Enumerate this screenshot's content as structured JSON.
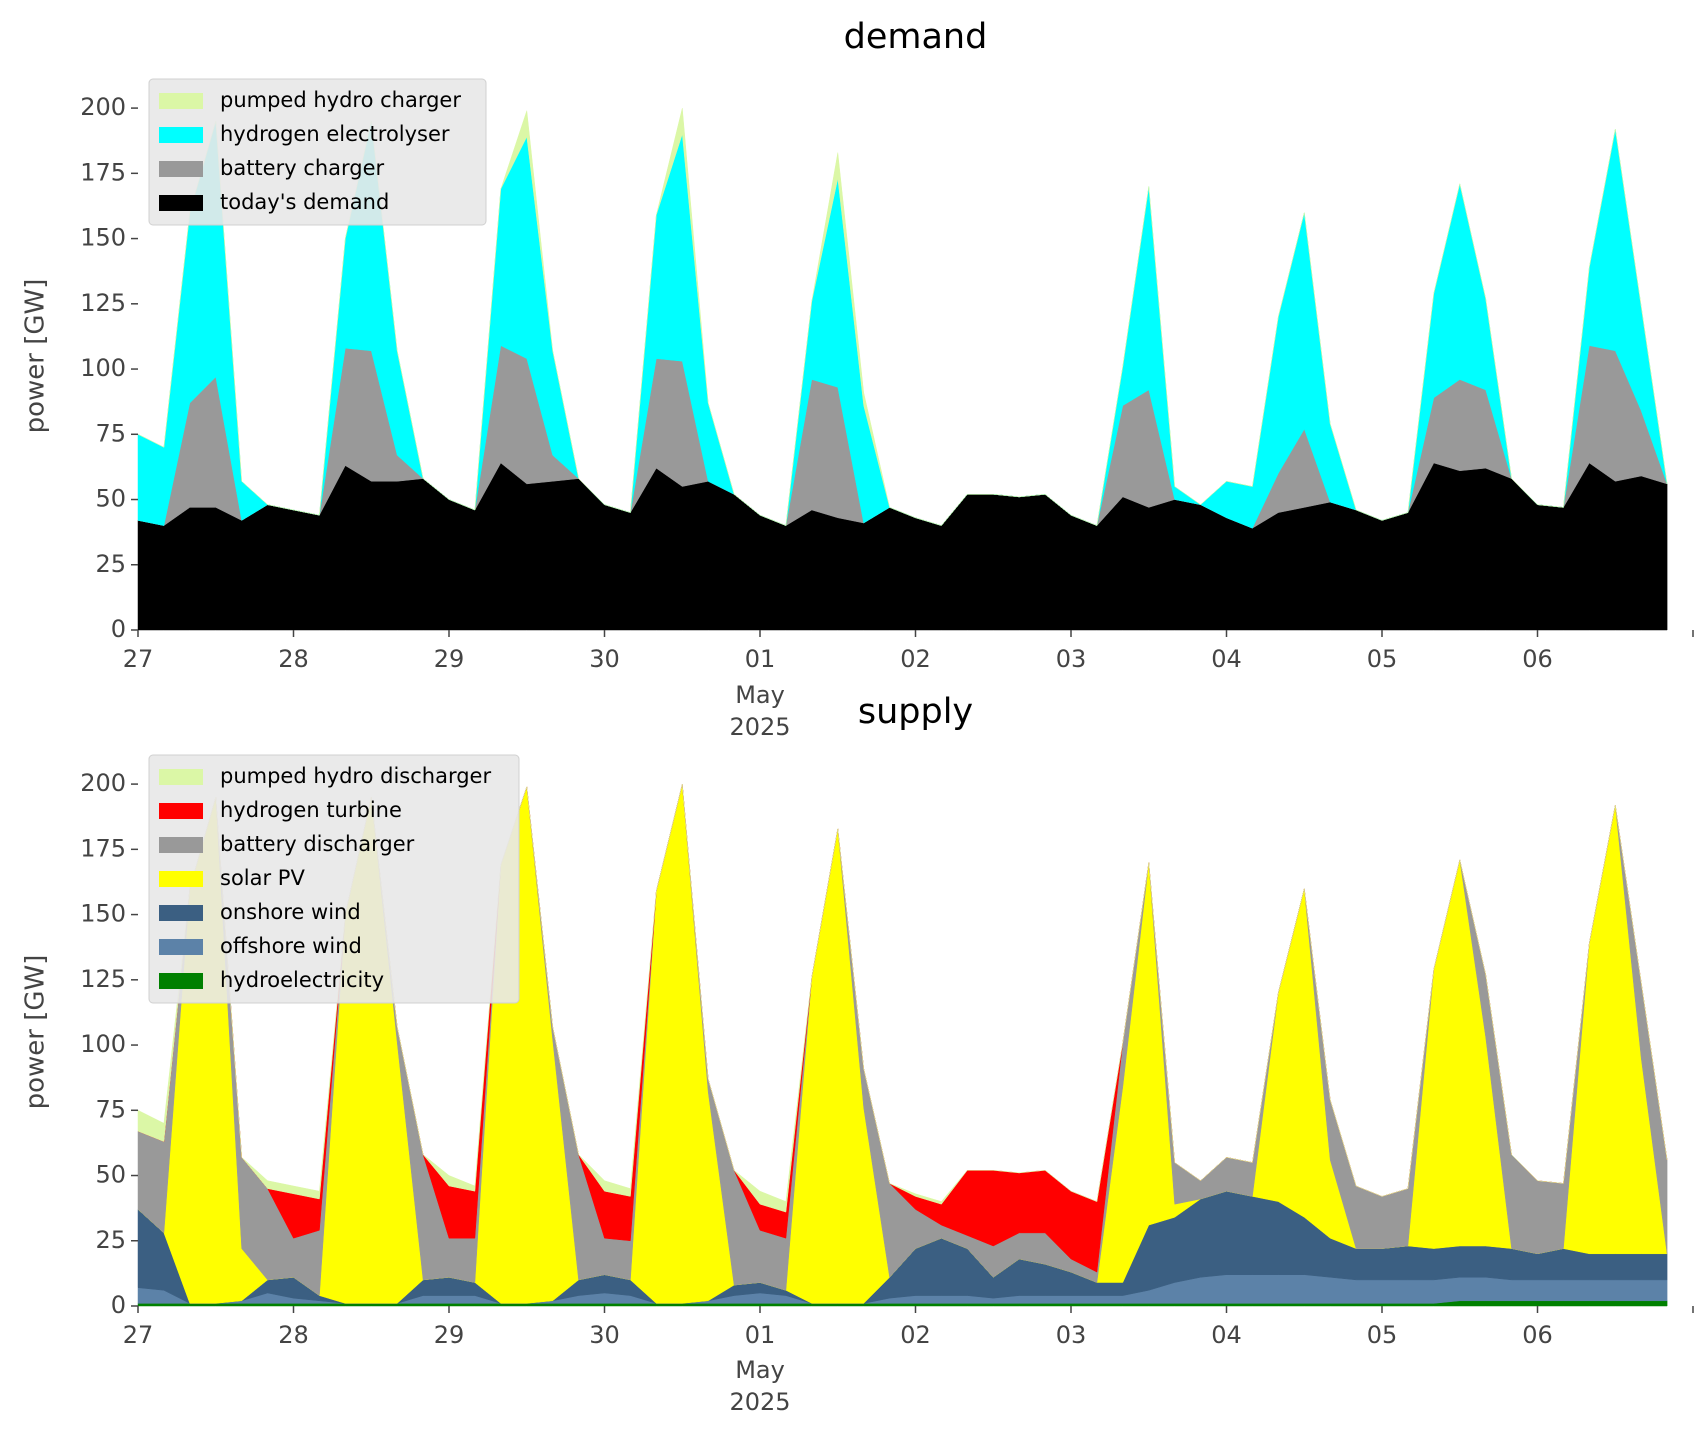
{
  "chart_data": [
    {
      "type": "area",
      "stacked": true,
      "title": "demand",
      "ylabel": "power [GW]",
      "legend": "upper left",
      "x": [
        "2025-04-27T00:00",
        "2025-04-27T04:00",
        "2025-04-27T08:00",
        "2025-04-27T12:00",
        "2025-04-27T16:00",
        "2025-04-27T20:00",
        "2025-04-28T00:00",
        "2025-04-28T04:00",
        "2025-04-28T08:00",
        "2025-04-28T12:00",
        "2025-04-28T16:00",
        "2025-04-28T20:00",
        "2025-04-29T00:00",
        "2025-04-29T04:00",
        "2025-04-29T08:00",
        "2025-04-29T12:00",
        "2025-04-29T16:00",
        "2025-04-29T20:00",
        "2025-04-30T00:00",
        "2025-04-30T04:00",
        "2025-04-30T08:00",
        "2025-04-30T12:00",
        "2025-04-30T16:00",
        "2025-04-30T20:00",
        "2025-05-01T00:00",
        "2025-05-01T04:00",
        "2025-05-01T08:00",
        "2025-05-01T12:00",
        "2025-05-01T16:00",
        "2025-05-01T20:00",
        "2025-05-02T00:00",
        "2025-05-02T04:00",
        "2025-05-02T08:00",
        "2025-05-02T12:00",
        "2025-05-02T16:00",
        "2025-05-02T20:00",
        "2025-05-03T00:00",
        "2025-05-03T04:00",
        "2025-05-03T08:00",
        "2025-05-03T12:00",
        "2025-05-03T16:00",
        "2025-05-03T20:00",
        "2025-05-04T00:00",
        "2025-05-04T04:00",
        "2025-05-04T08:00",
        "2025-05-04T12:00",
        "2025-05-04T16:00",
        "2025-05-04T20:00",
        "2025-05-05T00:00",
        "2025-05-05T04:00",
        "2025-05-05T08:00",
        "2025-05-05T12:00",
        "2025-05-05T16:00",
        "2025-05-05T20:00",
        "2025-05-06T00:00",
        "2025-05-06T04:00",
        "2025-05-06T08:00",
        "2025-05-06T12:00",
        "2025-05-06T16:00",
        "2025-05-06T20:00"
      ],
      "series": [
        {
          "name": "pumped hydro charger",
          "color": "#dbf7a6",
          "values": [
            0,
            0,
            0,
            0,
            0,
            0,
            0,
            0,
            0,
            0,
            0,
            0,
            0,
            0,
            0,
            10,
            0,
            0,
            0,
            0,
            0,
            10,
            0,
            0,
            0,
            0,
            0,
            10,
            5,
            0,
            0,
            0,
            0,
            0,
            0,
            0,
            0,
            0,
            0,
            0,
            0,
            0,
            0,
            0,
            0,
            0,
            0,
            0,
            0,
            0,
            0,
            0,
            0,
            0,
            0,
            0,
            0,
            0,
            0,
            0
          ]
        },
        {
          "name": "hydrogen electrolyser",
          "color": "#00ffff",
          "values": [
            33,
            30,
            73,
            98,
            15,
            0,
            0,
            0,
            42,
            88,
            40,
            0,
            0,
            0,
            60,
            85,
            40,
            0,
            0,
            0,
            55,
            87,
            30,
            0,
            0,
            0,
            30,
            80,
            45,
            0,
            0,
            0,
            0,
            0,
            0,
            0,
            0,
            0,
            15,
            78,
            5,
            0,
            14,
            16,
            60,
            83,
            30,
            0,
            0,
            0,
            40,
            75,
            35,
            0,
            0,
            0,
            30,
            85,
            40,
            0
          ]
        },
        {
          "name": "battery charger",
          "color": "#999999",
          "values": [
            0,
            0,
            40,
            50,
            0,
            0,
            0,
            0,
            45,
            50,
            10,
            0,
            0,
            0,
            45,
            48,
            10,
            0,
            0,
            0,
            42,
            48,
            0,
            0,
            0,
            0,
            50,
            50,
            0,
            0,
            0,
            0,
            0,
            0,
            0,
            0,
            0,
            0,
            35,
            45,
            0,
            0,
            0,
            0,
            15,
            30,
            0,
            0,
            0,
            0,
            25,
            35,
            30,
            0,
            0,
            0,
            45,
            50,
            25,
            0
          ]
        },
        {
          "name": "today's demand",
          "color": "#000000",
          "values": [
            42,
            40,
            47,
            47,
            42,
            48,
            46,
            44,
            63,
            57,
            57,
            58,
            50,
            46,
            64,
            56,
            57,
            58,
            48,
            45,
            62,
            55,
            57,
            52,
            44,
            40,
            46,
            43,
            41,
            47,
            43,
            40,
            52,
            52,
            51,
            52,
            44,
            40,
            51,
            47,
            50,
            48,
            43,
            39,
            45,
            47,
            49,
            46,
            42,
            45,
            64,
            61,
            62,
            58,
            48,
            47,
            64,
            57,
            59,
            56
          ]
        }
      ],
      "xlim": [
        "2025-04-27T00:00",
        "2025-05-07T00:00"
      ],
      "xticks": [
        {
          "value": "2025-04-27T00:00",
          "label": "27"
        },
        {
          "value": "2025-04-28T00:00",
          "label": "28"
        },
        {
          "value": "2025-04-29T00:00",
          "label": "29"
        },
        {
          "value": "2025-04-30T00:00",
          "label": "30"
        },
        {
          "value": "2025-05-01T00:00",
          "label": "01"
        },
        {
          "value": "2025-05-02T00:00",
          "label": "02"
        },
        {
          "value": "2025-05-03T00:00",
          "label": "03"
        },
        {
          "value": "2025-05-04T00:00",
          "label": "04"
        },
        {
          "value": "2025-05-05T00:00",
          "label": "05"
        },
        {
          "value": "2025-05-06T00:00",
          "label": "06"
        },
        {
          "value": "2025-05-07T00:00",
          "label": null
        }
      ],
      "x_month": "May",
      "x_year": "2025",
      "ylim": [
        0,
        210
      ],
      "yticks": [
        0,
        25,
        50,
        75,
        100,
        125,
        150,
        175,
        200
      ]
    },
    {
      "type": "area",
      "stacked": true,
      "title": "supply",
      "ylabel": "power [GW]",
      "legend": "upper left",
      "x": [
        "2025-04-27T00:00",
        "2025-04-27T04:00",
        "2025-04-27T08:00",
        "2025-04-27T12:00",
        "2025-04-27T16:00",
        "2025-04-27T20:00",
        "2025-04-28T00:00",
        "2025-04-28T04:00",
        "2025-04-28T08:00",
        "2025-04-28T12:00",
        "2025-04-28T16:00",
        "2025-04-28T20:00",
        "2025-04-29T00:00",
        "2025-04-29T04:00",
        "2025-04-29T08:00",
        "2025-04-29T12:00",
        "2025-04-29T16:00",
        "2025-04-29T20:00",
        "2025-04-30T00:00",
        "2025-04-30T04:00",
        "2025-04-30T08:00",
        "2025-04-30T12:00",
        "2025-04-30T16:00",
        "2025-04-30T20:00",
        "2025-05-01T00:00",
        "2025-05-01T04:00",
        "2025-05-01T08:00",
        "2025-05-01T12:00",
        "2025-05-01T16:00",
        "2025-05-01T20:00",
        "2025-05-02T00:00",
        "2025-05-02T04:00",
        "2025-05-02T08:00",
        "2025-05-02T12:00",
        "2025-05-02T16:00",
        "2025-05-02T20:00",
        "2025-05-03T00:00",
        "2025-05-03T04:00",
        "2025-05-03T08:00",
        "2025-05-03T12:00",
        "2025-05-03T16:00",
        "2025-05-03T20:00",
        "2025-05-04T00:00",
        "2025-05-04T04:00",
        "2025-05-04T08:00",
        "2025-05-04T12:00",
        "2025-05-04T16:00",
        "2025-05-04T20:00",
        "2025-05-05T00:00",
        "2025-05-05T04:00",
        "2025-05-05T08:00",
        "2025-05-05T12:00",
        "2025-05-05T16:00",
        "2025-05-05T20:00",
        "2025-05-06T00:00",
        "2025-05-06T04:00",
        "2025-05-06T08:00",
        "2025-05-06T12:00",
        "2025-05-06T16:00",
        "2025-05-06T20:00"
      ],
      "series": [
        {
          "name": "pumped hydro discharger",
          "color": "#dbf7a6",
          "values": [
            8,
            7,
            0,
            0,
            0,
            3,
            3,
            3,
            0,
            0,
            0,
            0,
            4,
            2,
            0,
            0,
            0,
            0,
            4,
            3,
            0,
            0,
            0,
            0,
            5,
            4,
            0,
            0,
            0,
            0,
            1,
            1,
            0,
            0,
            0,
            0,
            0,
            0,
            0,
            0,
            0,
            0,
            0,
            0,
            0,
            0,
            0,
            0,
            0,
            0,
            0,
            0,
            0,
            0,
            0,
            0,
            0,
            0,
            0,
            0
          ]
        },
        {
          "name": "hydrogen turbine",
          "color": "#ff0000",
          "values": [
            0,
            0,
            0,
            0,
            0,
            0,
            17,
            12,
            0,
            0,
            0,
            0,
            20,
            18,
            0,
            0,
            0,
            0,
            18,
            17,
            0,
            0,
            0,
            0,
            10,
            10,
            0,
            0,
            0,
            0,
            5,
            8,
            25,
            29,
            23,
            24,
            26,
            27,
            0,
            0,
            0,
            0,
            0,
            0,
            0,
            0,
            0,
            0,
            0,
            0,
            0,
            0,
            0,
            0,
            0,
            0,
            0,
            0,
            0,
            0
          ]
        },
        {
          "name": "battery discharger",
          "color": "#999999",
          "values": [
            30,
            35,
            0,
            0,
            35,
            35,
            15,
            25,
            0,
            0,
            6,
            48,
            15,
            17,
            0,
            0,
            5,
            48,
            14,
            15,
            0,
            0,
            5,
            44,
            20,
            20,
            0,
            0,
            15,
            36,
            15,
            5,
            5,
            12,
            10,
            12,
            5,
            4,
            17,
            0,
            16,
            7,
            13,
            13,
            0,
            0,
            23,
            24,
            20,
            22,
            0,
            0,
            24,
            36,
            28,
            25,
            0,
            0,
            29,
            36
          ]
        },
        {
          "name": "solar PV",
          "color": "#ffff00",
          "values": [
            0,
            0,
            159,
            194,
            20,
            0,
            0,
            0,
            149,
            194,
            100,
            0,
            0,
            0,
            168,
            198,
            100,
            0,
            0,
            0,
            158,
            199,
            80,
            0,
            0,
            0,
            125,
            182,
            75,
            0,
            0,
            0,
            0,
            0,
            0,
            0,
            0,
            0,
            75,
            139,
            5,
            0,
            0,
            0,
            80,
            126,
            30,
            0,
            0,
            0,
            107,
            148,
            80,
            0,
            0,
            0,
            119,
            172,
            75,
            0
          ]
        },
        {
          "name": "onshore wind",
          "color": "#3b5f82",
          "values": [
            30,
            22,
            0,
            0,
            0,
            5,
            8,
            2,
            0,
            0,
            0,
            6,
            7,
            5,
            0,
            0,
            0,
            6,
            7,
            6,
            0,
            0,
            0,
            4,
            4,
            2,
            0,
            0,
            0,
            8,
            18,
            22,
            18,
            8,
            14,
            12,
            9,
            5,
            5,
            25,
            25,
            30,
            32,
            30,
            28,
            22,
            15,
            12,
            12,
            13,
            12,
            12,
            12,
            12,
            10,
            12,
            10,
            10,
            10,
            10
          ]
        },
        {
          "name": "offshore wind",
          "color": "#5c82a8",
          "values": [
            6,
            5,
            0,
            0,
            1,
            4,
            2,
            1,
            0,
            0,
            0,
            3,
            3,
            3,
            0,
            0,
            1,
            3,
            4,
            3,
            0,
            0,
            1,
            3,
            4,
            3,
            0,
            0,
            0,
            2,
            3,
            3,
            3,
            2,
            3,
            3,
            3,
            3,
            3,
            5,
            8,
            10,
            11,
            11,
            11,
            11,
            10,
            9,
            9,
            9,
            9,
            9,
            9,
            8,
            8,
            8,
            8,
            8,
            8,
            8
          ]
        },
        {
          "name": "hydroelectricity",
          "color": "#008000",
          "values": [
            1,
            1,
            1,
            1,
            1,
            1,
            1,
            1,
            1,
            1,
            1,
            1,
            1,
            1,
            1,
            1,
            1,
            1,
            1,
            1,
            1,
            1,
            1,
            1,
            1,
            1,
            1,
            1,
            1,
            1,
            1,
            1,
            1,
            1,
            1,
            1,
            1,
            1,
            1,
            1,
            1,
            1,
            1,
            1,
            1,
            1,
            1,
            1,
            1,
            1,
            1,
            2,
            2,
            2,
            2,
            2,
            2,
            2,
            2,
            2
          ]
        }
      ],
      "xlim": [
        "2025-04-27T00:00",
        "2025-05-07T00:00"
      ],
      "xticks": [
        {
          "value": "2025-04-27T00:00",
          "label": "27"
        },
        {
          "value": "2025-04-28T00:00",
          "label": "28"
        },
        {
          "value": "2025-04-29T00:00",
          "label": "29"
        },
        {
          "value": "2025-04-30T00:00",
          "label": "30"
        },
        {
          "value": "2025-05-01T00:00",
          "label": "01"
        },
        {
          "value": "2025-05-02T00:00",
          "label": "02"
        },
        {
          "value": "2025-05-03T00:00",
          "label": "03"
        },
        {
          "value": "2025-05-04T00:00",
          "label": "04"
        },
        {
          "value": "2025-05-05T00:00",
          "label": "05"
        },
        {
          "value": "2025-05-06T00:00",
          "label": "06"
        },
        {
          "value": "2025-05-07T00:00",
          "label": null
        }
      ],
      "x_month": "May",
      "x_year": "2025",
      "ylim": [
        0,
        210
      ],
      "yticks": [
        0,
        25,
        50,
        75,
        100,
        125,
        150,
        175,
        200
      ]
    }
  ]
}
